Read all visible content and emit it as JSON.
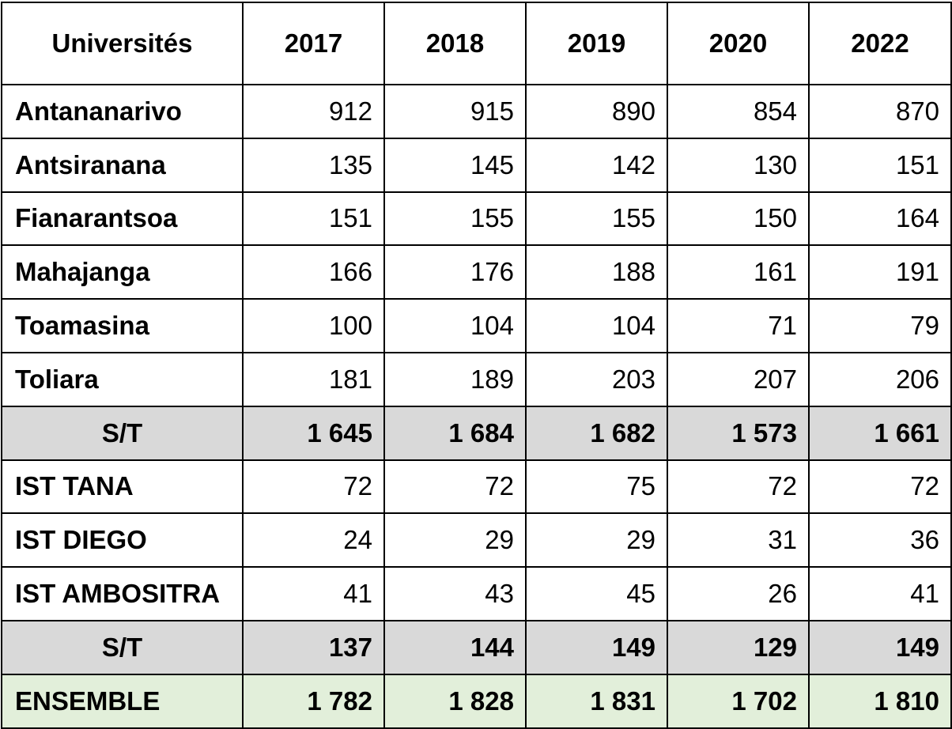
{
  "table": {
    "headers": [
      "Universités",
      "2017",
      "2018",
      "2019",
      "2020",
      "2022"
    ],
    "rows": [
      {
        "type": "data",
        "label": "Antananarivo",
        "values": [
          "912",
          "915",
          "890",
          "854",
          "870"
        ]
      },
      {
        "type": "data",
        "label": "Antsiranana",
        "values": [
          "135",
          "145",
          "142",
          "130",
          "151"
        ]
      },
      {
        "type": "data",
        "label": "Fianarantsoa",
        "values": [
          "151",
          "155",
          "155",
          "150",
          "164"
        ]
      },
      {
        "type": "data",
        "label": "Mahajanga",
        "values": [
          "166",
          "176",
          "188",
          "161",
          "191"
        ]
      },
      {
        "type": "data",
        "label": "Toamasina",
        "values": [
          "100",
          "104",
          "104",
          "71",
          "79"
        ]
      },
      {
        "type": "data",
        "label": "Toliara",
        "values": [
          "181",
          "189",
          "203",
          "207",
          "206"
        ]
      },
      {
        "type": "subtotal",
        "label": "S/T",
        "values": [
          "1 645",
          "1 684",
          "1 682",
          "1 573",
          "1 661"
        ]
      },
      {
        "type": "data",
        "label": "IST TANA",
        "values": [
          "72",
          "72",
          "75",
          "72",
          "72"
        ]
      },
      {
        "type": "data",
        "label": "IST DIEGO",
        "values": [
          "24",
          "29",
          "29",
          "31",
          "36"
        ]
      },
      {
        "type": "data",
        "label": "IST AMBOSITRA",
        "values": [
          "41",
          "43",
          "45",
          "26",
          "41"
        ]
      },
      {
        "type": "subtotal",
        "label": "S/T",
        "values": [
          "137",
          "144",
          "149",
          "129",
          "149"
        ]
      },
      {
        "type": "total",
        "label": "ENSEMBLE",
        "values": [
          "1 782",
          "1 828",
          "1 831",
          "1 702",
          "1 810"
        ]
      }
    ],
    "colors": {
      "border": "#000000",
      "subtotal_bg": "#d9d9d9",
      "total_bg": "#e2efda"
    }
  }
}
